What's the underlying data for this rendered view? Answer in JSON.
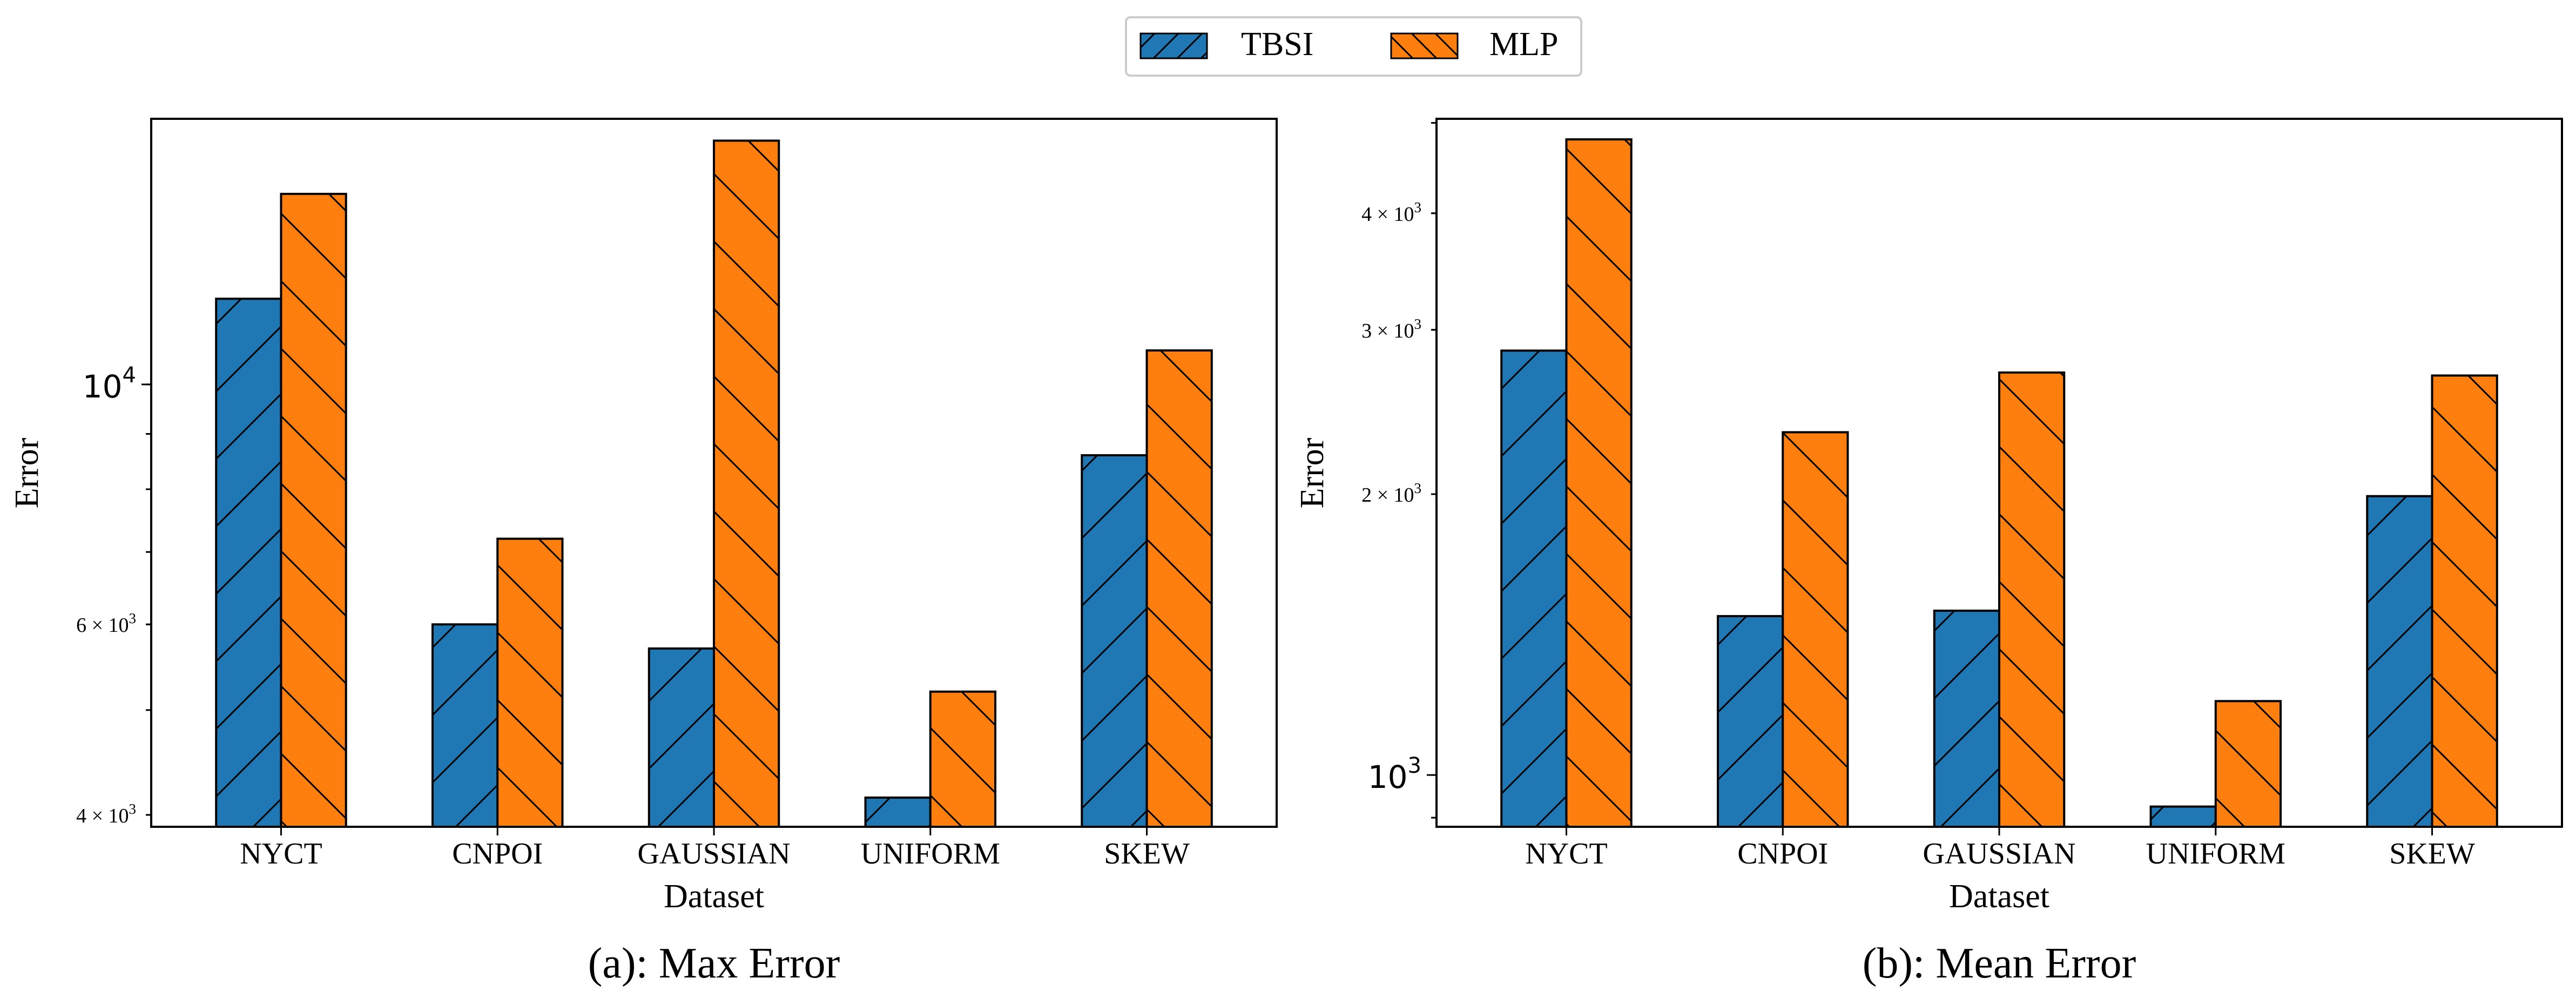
{
  "legend": {
    "position": "top-center",
    "entries": [
      {
        "label": "TBSI",
        "color": "#1f77b4",
        "hatch": "/"
      },
      {
        "label": "MLP",
        "color": "#ff7f0e",
        "hatch": "\\"
      }
    ]
  },
  "chart_data": [
    {
      "type": "bar",
      "title": "",
      "caption": "(a): Max Error",
      "xlabel": "Dataset",
      "ylabel": "Error",
      "yscale": "log",
      "ylim": [
        3900,
        17600
      ],
      "categories": [
        "NYCT",
        "CNPOI",
        "GAUSSIAN",
        "UNIFORM",
        "SKEW"
      ],
      "series": [
        {
          "name": "TBSI",
          "values": [
            12000,
            6000,
            5700,
            4150,
            8600
          ]
        },
        {
          "name": "MLP",
          "values": [
            15000,
            7200,
            16800,
            5200,
            10750
          ]
        }
      ],
      "yticks": [
        {
          "value": 4000,
          "base": "4",
          "exp": "3"
        },
        {
          "value": 6000,
          "base": "6",
          "exp": "3"
        },
        {
          "value": 10000,
          "base": "10",
          "exp": "4"
        }
      ]
    },
    {
      "type": "bar",
      "title": "",
      "caption": "(b): Mean Error",
      "xlabel": "Dataset",
      "ylabel": "Error",
      "yscale": "log",
      "ylim": [
        880,
        5050
      ],
      "categories": [
        "NYCT",
        "CNPOI",
        "GAUSSIAN",
        "UNIFORM",
        "SKEW"
      ],
      "series": [
        {
          "name": "TBSI",
          "values": [
            2850,
            1480,
            1500,
            925,
            1990
          ]
        },
        {
          "name": "MLP",
          "values": [
            4800,
            2330,
            2700,
            1200,
            2680
          ]
        }
      ],
      "yticks": [
        {
          "value": 1000,
          "base": "10",
          "exp": "3"
        },
        {
          "value": 2000,
          "base": "2",
          "exp": "3"
        },
        {
          "value": 3000,
          "base": "3",
          "exp": "3"
        },
        {
          "value": 4000,
          "base": "4",
          "exp": "3"
        }
      ]
    }
  ]
}
